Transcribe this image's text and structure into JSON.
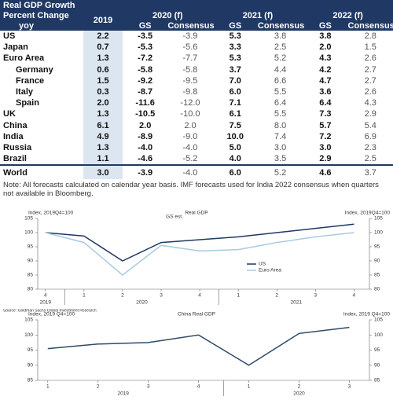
{
  "table": {
    "title": "Real GDP Growth",
    "row_header": [
      "Percent Change",
      "yoy"
    ],
    "year_2019": "2019",
    "groups": [
      "2020 (f)",
      "2021 (f)",
      "2022 (f)"
    ],
    "subheaders": [
      "GS",
      "Consensus",
      "GS",
      "Consensus",
      "GS",
      "Consensus"
    ],
    "rows": [
      [
        "US",
        "2.2",
        "-3.5",
        "-3.9",
        "5.3",
        "3.8",
        "3.8",
        "2.8"
      ],
      [
        "Japan",
        "0.7",
        "-5.3",
        "-5.6",
        "3.3",
        "2.5",
        "2.0",
        "1.5"
      ],
      [
        "Euro Area",
        "1.3",
        "-7.2",
        "-7.7",
        "5.3",
        "5.2",
        "4.3",
        "2.6"
      ],
      [
        "Germany",
        "0.6",
        "-5.8",
        "-5.8",
        "3.7",
        "4.4",
        "4.2",
        "2.7"
      ],
      [
        "France",
        "1.5",
        "-9.2",
        "-9.5",
        "7.0",
        "6.6",
        "4.7",
        "2.7"
      ],
      [
        "Italy",
        "0.3",
        "-8.7",
        "-9.8",
        "6.0",
        "5.5",
        "3.6",
        "2.6"
      ],
      [
        "Spain",
        "2.0",
        "-11.6",
        "-12.0",
        "7.1",
        "6.4",
        "6.4",
        "4.3"
      ],
      [
        "UK",
        "1.3",
        "-10.5",
        "-10.0",
        "6.1",
        "5.5",
        "7.3",
        "2.9"
      ],
      [
        "China",
        "6.1",
        "2.0",
        "2.0",
        "7.5",
        "8.0",
        "5.7",
        "5.4"
      ],
      [
        "India",
        "4.9",
        "-8.9",
        "-9.0",
        "10.0",
        "7.4",
        "7.2",
        "6.9"
      ],
      [
        "Russia",
        "1.3",
        "-4.0",
        "-4.0",
        "5.0",
        "3.0",
        "3.0",
        "2.3"
      ],
      [
        "Brazil",
        "1.1",
        "-4.6",
        "-5.2",
        "4.0",
        "3.5",
        "2.9",
        "2.5"
      ],
      [
        "World",
        "3.0",
        "-3.9",
        "-4.0",
        "6.0",
        "5.2",
        "4.6",
        "3.7"
      ]
    ],
    "note": "Note: All forecasts calculated on calendar year basis. IMF forecasts used for India 2022 consensus when quarters not available in Bloomberg."
  },
  "chart_data": [
    {
      "type": "line",
      "title": "Real GDP",
      "annotation": "GS est.",
      "ylabel": "Index, 2019Q4=100",
      "y2label": "Index, 2019Q4=100",
      "categories": [
        "4",
        "1",
        "2",
        "3",
        "4",
        "1",
        "2",
        "3",
        "4"
      ],
      "years": [
        "2019",
        "2020",
        "2021"
      ],
      "series": [
        {
          "name": "US",
          "color": "#1f3864",
          "values": [
            100,
            98.8,
            90,
            96.5,
            97.5,
            98.5,
            100,
            101.5,
            103
          ]
        },
        {
          "name": "Euro Area",
          "color": "#a9cbe0",
          "values": [
            100,
            96.5,
            85,
            95.5,
            93.5,
            94,
            96.5,
            98.5,
            100
          ]
        }
      ],
      "ylim": [
        80,
        105
      ],
      "yticks": [
        80,
        85,
        90,
        95,
        100,
        105
      ],
      "legend": "center"
    },
    {
      "type": "line",
      "source": "Source: Goldman Sachs Global Investment Research",
      "title": "China Real GDP",
      "ylabel": "Index, 2019 Q4=100",
      "y2label": "Index, 2019 Q4=100",
      "categories": [
        "1",
        "2",
        "3",
        "4",
        "1",
        "2",
        "3"
      ],
      "years": [
        "2019",
        "2020"
      ],
      "series": [
        {
          "name": "China",
          "color": "#2e4a6b",
          "values": [
            95.5,
            97,
            97.5,
            100,
            90,
            100.5,
            102.5
          ]
        }
      ],
      "ylim": [
        85,
        105
      ],
      "yticks": [
        85,
        90,
        95,
        100,
        105
      ]
    }
  ]
}
